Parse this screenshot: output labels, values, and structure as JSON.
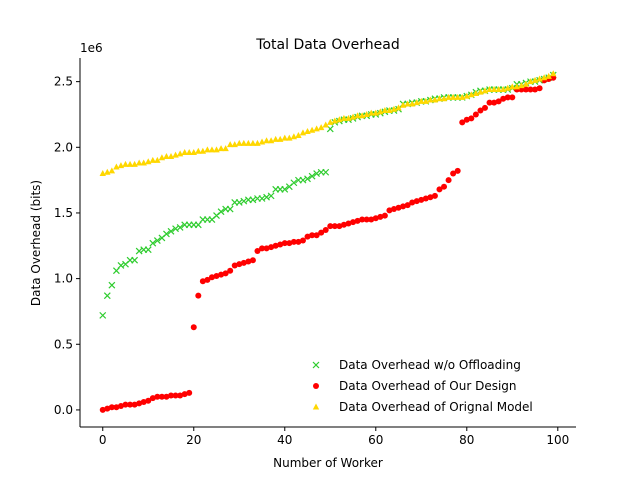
{
  "chart_data": {
    "type": "scatter",
    "title": "Total Data Overhead",
    "xlabel": "Number of Worker",
    "ylabel": "Data Overhead (bits)",
    "y_offset_label": "1e6",
    "xlim": [
      -5,
      104
    ],
    "ylim": [
      -0.13,
      2.68
    ],
    "xticks": [
      0,
      20,
      40,
      60,
      80,
      100
    ],
    "xtick_labels": [
      "0",
      "20",
      "40",
      "60",
      "80",
      "100"
    ],
    "yticks": [
      0.0,
      0.5,
      1.0,
      1.5,
      2.0,
      2.5
    ],
    "ytick_labels": [
      "0.0",
      "0.5",
      "1.0",
      "1.5",
      "2.0",
      "2.5"
    ],
    "legend_position": "lower-right",
    "colors": {
      "offloading": "#2ecc2e",
      "our_design": "#ff0000",
      "original": "#ffd700"
    },
    "series": [
      {
        "name": "Data Overhead w/o Offloading",
        "marker": "x",
        "color": "#2ecc2e",
        "x": [
          0,
          1,
          2,
          3,
          4,
          5,
          6,
          7,
          8,
          9,
          10,
          11,
          12,
          13,
          14,
          15,
          16,
          17,
          18,
          19,
          20,
          21,
          22,
          23,
          24,
          25,
          26,
          27,
          28,
          29,
          30,
          31,
          32,
          33,
          34,
          35,
          36,
          37,
          38,
          39,
          40,
          41,
          42,
          43,
          44,
          45,
          46,
          47,
          48,
          49,
          50,
          51,
          52,
          53,
          54,
          55,
          56,
          57,
          58,
          59,
          60,
          61,
          62,
          63,
          64,
          65,
          66,
          67,
          68,
          69,
          70,
          71,
          72,
          73,
          74,
          75,
          76,
          77,
          78,
          79,
          80,
          81,
          82,
          83,
          84,
          85,
          86,
          87,
          88,
          89,
          90,
          91,
          92,
          93,
          94,
          95,
          96,
          97,
          98,
          99
        ],
        "values": [
          0.72,
          0.87,
          0.95,
          1.06,
          1.1,
          1.11,
          1.14,
          1.14,
          1.21,
          1.22,
          1.22,
          1.27,
          1.29,
          1.31,
          1.34,
          1.36,
          1.38,
          1.39,
          1.41,
          1.41,
          1.41,
          1.41,
          1.45,
          1.45,
          1.45,
          1.48,
          1.51,
          1.53,
          1.53,
          1.58,
          1.58,
          1.59,
          1.6,
          1.6,
          1.61,
          1.61,
          1.62,
          1.63,
          1.68,
          1.68,
          1.68,
          1.7,
          1.73,
          1.75,
          1.75,
          1.76,
          1.78,
          1.8,
          1.81,
          1.81,
          2.14,
          2.19,
          2.2,
          2.21,
          2.21,
          2.22,
          2.23,
          2.24,
          2.24,
          2.25,
          2.25,
          2.26,
          2.27,
          2.28,
          2.28,
          2.29,
          2.33,
          2.33,
          2.34,
          2.34,
          2.35,
          2.35,
          2.36,
          2.37,
          2.37,
          2.38,
          2.38,
          2.38,
          2.38,
          2.38,
          2.39,
          2.4,
          2.42,
          2.43,
          2.43,
          2.44,
          2.44,
          2.44,
          2.44,
          2.44,
          2.45,
          2.48,
          2.48,
          2.49,
          2.5,
          2.5,
          2.51,
          2.52,
          2.53,
          2.55
        ]
      },
      {
        "name": "Data Overhead of Our Design",
        "marker": "o",
        "color": "#ff0000",
        "x": [
          0,
          1,
          2,
          3,
          4,
          5,
          6,
          7,
          8,
          9,
          10,
          11,
          12,
          13,
          14,
          15,
          16,
          17,
          18,
          19,
          20,
          21,
          22,
          23,
          24,
          25,
          26,
          27,
          28,
          29,
          30,
          31,
          32,
          33,
          34,
          35,
          36,
          37,
          38,
          39,
          40,
          41,
          42,
          43,
          44,
          45,
          46,
          47,
          48,
          49,
          50,
          51,
          52,
          53,
          54,
          55,
          56,
          57,
          58,
          59,
          60,
          61,
          62,
          63,
          64,
          65,
          66,
          67,
          68,
          69,
          70,
          71,
          72,
          73,
          74,
          75,
          76,
          77,
          78,
          79,
          80,
          81,
          82,
          83,
          84,
          85,
          86,
          87,
          88,
          89,
          90,
          91,
          92,
          93,
          94,
          95,
          96,
          97,
          98,
          99
        ],
        "values": [
          0.0,
          0.01,
          0.02,
          0.02,
          0.03,
          0.04,
          0.04,
          0.04,
          0.05,
          0.06,
          0.07,
          0.09,
          0.1,
          0.1,
          0.1,
          0.11,
          0.11,
          0.11,
          0.12,
          0.13,
          0.63,
          0.87,
          0.98,
          0.99,
          1.01,
          1.02,
          1.03,
          1.04,
          1.06,
          1.1,
          1.11,
          1.12,
          1.13,
          1.14,
          1.21,
          1.23,
          1.23,
          1.24,
          1.25,
          1.26,
          1.27,
          1.27,
          1.28,
          1.28,
          1.29,
          1.32,
          1.33,
          1.33,
          1.35,
          1.37,
          1.4,
          1.4,
          1.4,
          1.41,
          1.42,
          1.43,
          1.44,
          1.45,
          1.45,
          1.45,
          1.46,
          1.47,
          1.48,
          1.52,
          1.53,
          1.54,
          1.55,
          1.56,
          1.58,
          1.59,
          1.6,
          1.61,
          1.62,
          1.63,
          1.68,
          1.7,
          1.75,
          1.8,
          1.82,
          2.19,
          2.21,
          2.22,
          2.25,
          2.28,
          2.3,
          2.34,
          2.34,
          2.35,
          2.37,
          2.38,
          2.38,
          2.44,
          2.44,
          2.44,
          2.44,
          2.44,
          2.45,
          2.51,
          2.52,
          2.53
        ]
      },
      {
        "name": "Data Overhead of Orignal Model",
        "marker": "^",
        "color": "#ffd700",
        "x": [
          0,
          1,
          2,
          3,
          4,
          5,
          6,
          7,
          8,
          9,
          10,
          11,
          12,
          13,
          14,
          15,
          16,
          17,
          18,
          19,
          20,
          21,
          22,
          23,
          24,
          25,
          26,
          27,
          28,
          29,
          30,
          31,
          32,
          33,
          34,
          35,
          36,
          37,
          38,
          39,
          40,
          41,
          42,
          43,
          44,
          45,
          46,
          47,
          48,
          49,
          50,
          51,
          52,
          53,
          54,
          55,
          56,
          57,
          58,
          59,
          60,
          61,
          62,
          63,
          64,
          65,
          66,
          67,
          68,
          69,
          70,
          71,
          72,
          73,
          74,
          75,
          76,
          77,
          78,
          79,
          80,
          81,
          82,
          83,
          84,
          85,
          86,
          87,
          88,
          89,
          90,
          91,
          92,
          93,
          94,
          95,
          96,
          97,
          98,
          99
        ],
        "values": [
          1.8,
          1.81,
          1.82,
          1.85,
          1.86,
          1.87,
          1.87,
          1.87,
          1.88,
          1.88,
          1.89,
          1.9,
          1.9,
          1.92,
          1.93,
          1.93,
          1.94,
          1.95,
          1.96,
          1.96,
          1.96,
          1.97,
          1.97,
          1.98,
          1.98,
          1.98,
          1.99,
          1.99,
          2.02,
          2.02,
          2.03,
          2.03,
          2.03,
          2.03,
          2.03,
          2.04,
          2.05,
          2.05,
          2.06,
          2.06,
          2.07,
          2.07,
          2.08,
          2.09,
          2.11,
          2.12,
          2.13,
          2.14,
          2.15,
          2.17,
          2.19,
          2.2,
          2.21,
          2.22,
          2.22,
          2.23,
          2.24,
          2.24,
          2.25,
          2.26,
          2.26,
          2.27,
          2.28,
          2.28,
          2.29,
          2.3,
          2.32,
          2.33,
          2.33,
          2.34,
          2.35,
          2.35,
          2.36,
          2.36,
          2.37,
          2.37,
          2.38,
          2.38,
          2.38,
          2.38,
          2.39,
          2.4,
          2.41,
          2.42,
          2.43,
          2.44,
          2.44,
          2.44,
          2.44,
          2.45,
          2.46,
          2.46,
          2.47,
          2.48,
          2.5,
          2.51,
          2.52,
          2.53,
          2.54,
          2.56
        ]
      }
    ]
  }
}
